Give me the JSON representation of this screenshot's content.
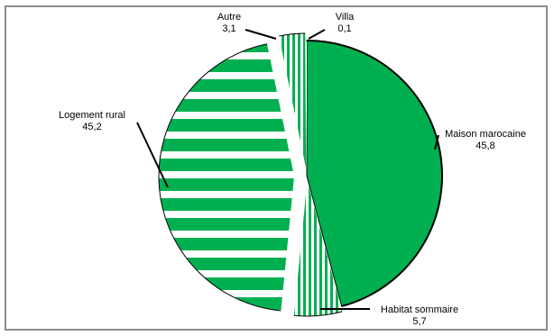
{
  "chart_data": {
    "type": "pie",
    "title": "",
    "legend": "none",
    "slices": [
      {
        "label": "Maison marocaine",
        "value": 45.8,
        "value_label": "45,8",
        "color": "#00b050",
        "pattern": "solid"
      },
      {
        "label": "Habitat sommaire",
        "value": 5.7,
        "value_label": "5,7",
        "color": "#00b050",
        "pattern": "vertical-stripes"
      },
      {
        "label": "Logement rural",
        "value": 45.2,
        "value_label": "45,2",
        "color": "#00b050",
        "pattern": "horizontal-stripes"
      },
      {
        "label": "Autre",
        "value": 3.1,
        "value_label": "3,1",
        "color": "#00b050",
        "pattern": "vertical-stripes"
      },
      {
        "label": "Villa",
        "value": 0.1,
        "value_label": "0,1",
        "color": "#00b050",
        "pattern": "dotted"
      }
    ]
  }
}
